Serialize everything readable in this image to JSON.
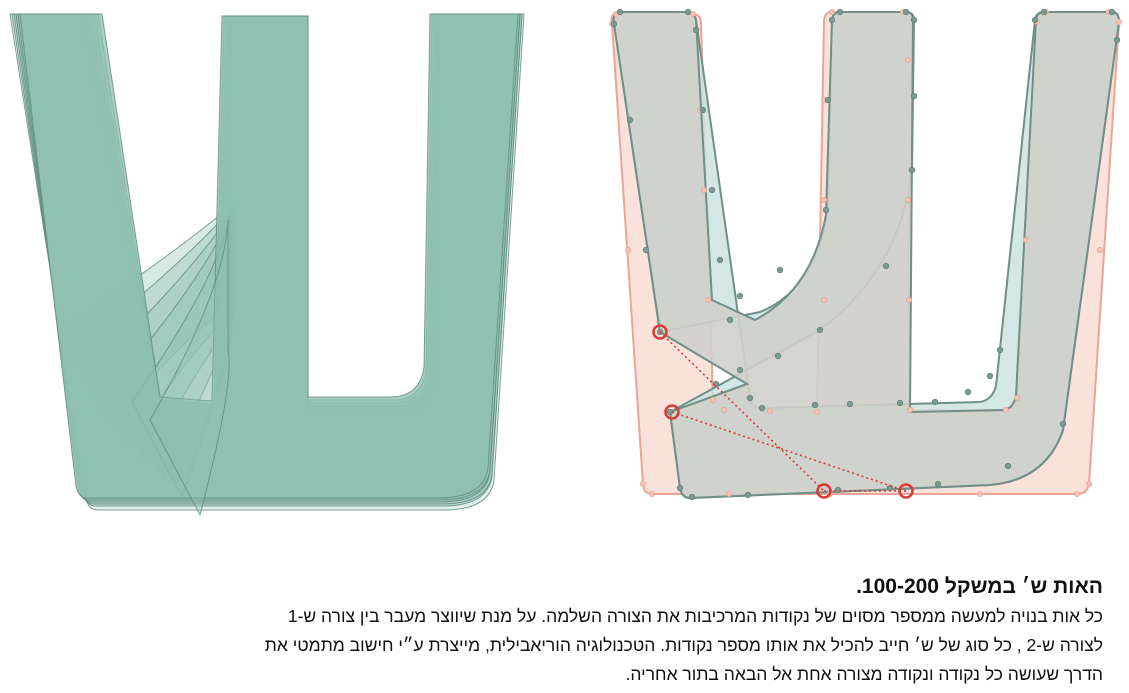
{
  "figure": {
    "left_panel": "stacked-interpolations",
    "right_panel": "point-correspondence",
    "colors": {
      "green_fill": "#8fbfb2",
      "green_stroke": "#5f8b80",
      "gray_fill": "#cfd0ca",
      "gray_stroke": "#6f8f88",
      "teal_fill": "#cde3e0",
      "pink_fill": "#f9ddd3",
      "pink_stroke": "#eba595",
      "red_marker": "#d93a33"
    }
  },
  "caption": {
    "title": "האות ש׳ במשקל 100-200.",
    "lines": [
      "כל אות בנויה למעשה ממספר מסוים של נקודות המרכיבות את הצורה השלמה. על מנת שיווצר מעבר בין צורה ש-1",
      "לצורה ש-2 , כל סוג של ש׳ חייב להכיל את אותו מספר נקודות. הטכנולוגיה הוריאבילית, מייצרת ע״י חישוב מתמטי את",
      "הדרך שעושה כל נקודה ונקודה מצורה אחת אל הבאה בתור אחריה."
    ]
  }
}
